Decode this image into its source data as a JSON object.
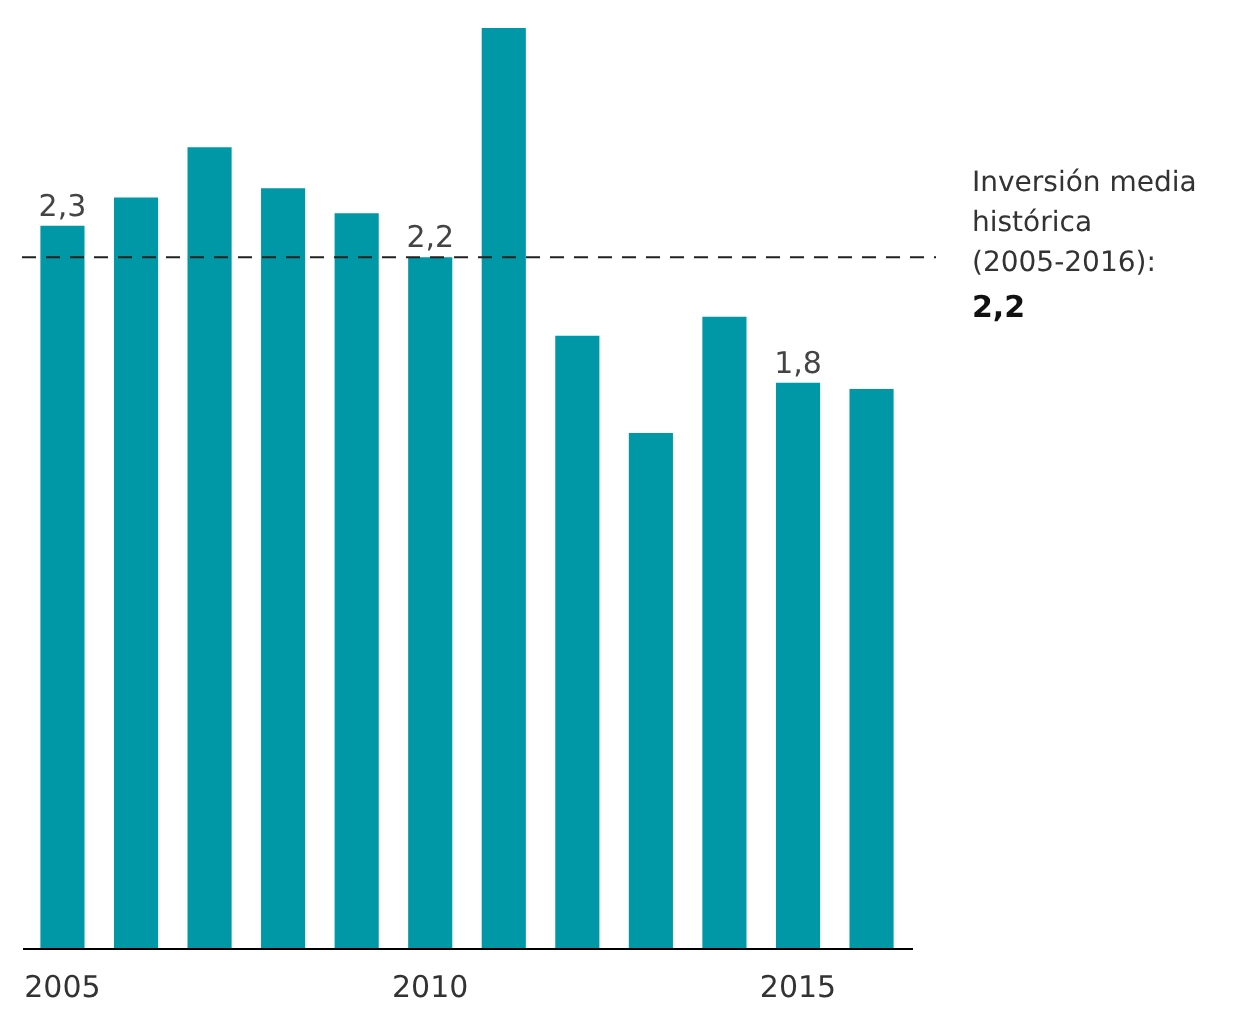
{
  "chart_data": {
    "type": "bar",
    "categories": [
      "2005",
      null,
      null,
      null,
      null,
      "2010",
      null,
      null,
      null,
      null,
      "2015",
      null
    ],
    "values": [
      2.3,
      2.39,
      2.55,
      2.42,
      2.34,
      2.2,
      2.93,
      1.95,
      1.64,
      2.01,
      1.8,
      1.78
    ],
    "color": "#0097a7",
    "value_labels": [
      "2,3",
      null,
      null,
      null,
      null,
      "2,2",
      null,
      null,
      null,
      null,
      "1,8",
      null
    ],
    "ref_lines": [
      {
        "axis": "y",
        "value": 2.2,
        "label": "Inversión media histórica (2005-2016):",
        "color": "#222222",
        "line_style": "dashed"
      }
    ],
    "annotations": [
      "2,2"
    ],
    "grid": false
  }
}
